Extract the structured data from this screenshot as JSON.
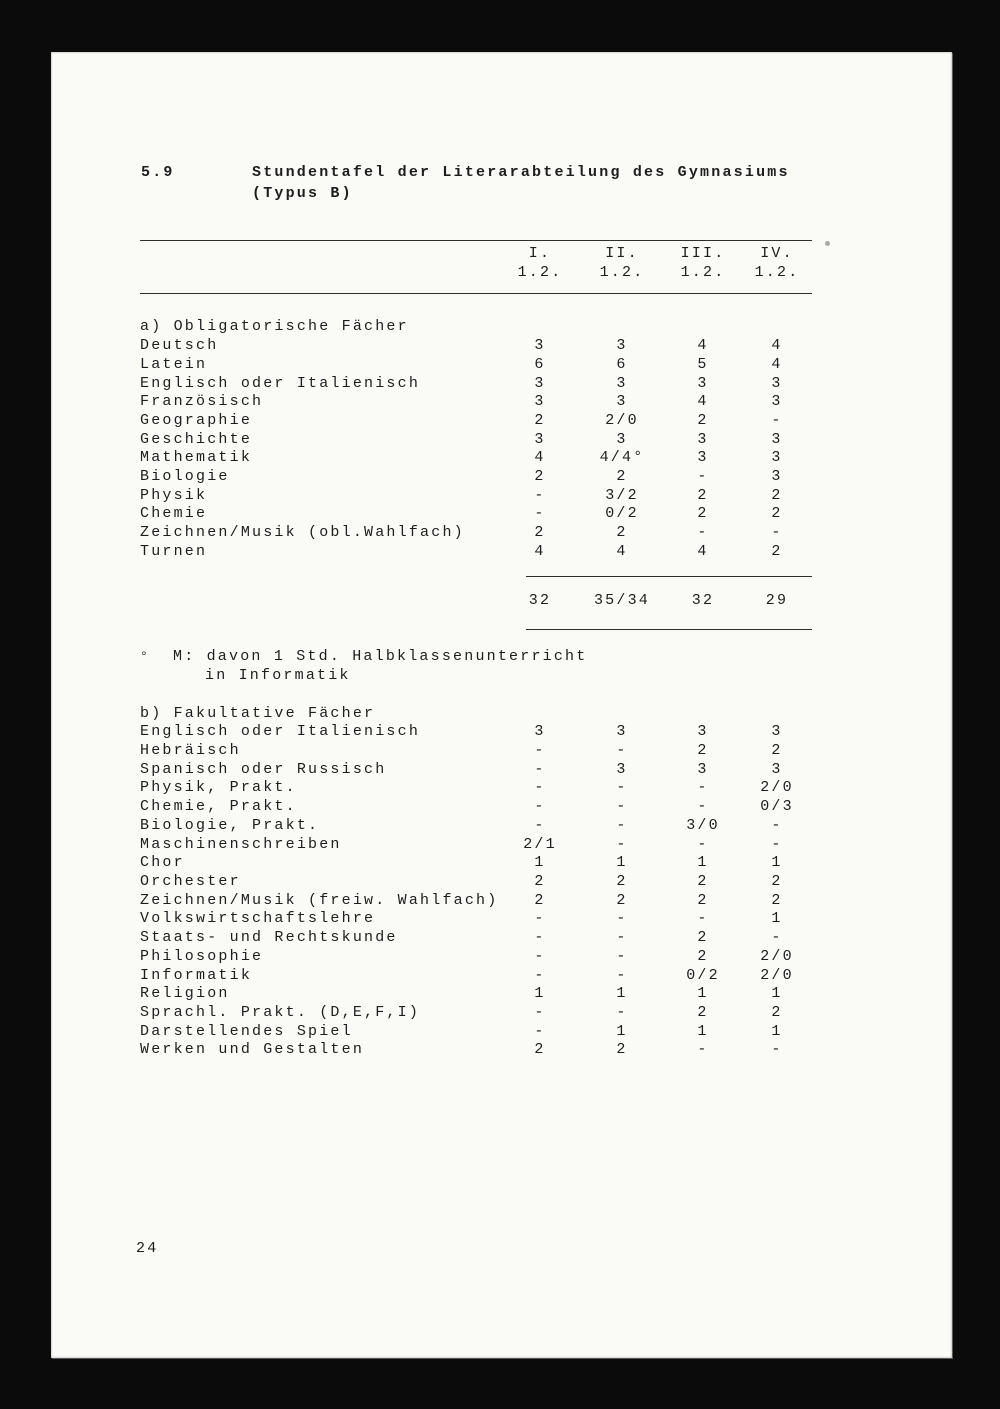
{
  "colors": {
    "scan_background": "#0b0b0c",
    "page_background": "#fafaf7",
    "text": "#1e1e1e",
    "rule": "#2e2e2e"
  },
  "page": {
    "section_number": "5.9",
    "title_line1": "Stundentafel der Literarabteilung des Gymnasiums",
    "title_line2": "(Typus B)",
    "page_number": "24"
  },
  "table": {
    "columns": [
      {
        "label": "I.",
        "sub": "1.2."
      },
      {
        "label": "II.",
        "sub": "1.2."
      },
      {
        "label": "III.",
        "sub": "1.2."
      },
      {
        "label": "IV.",
        "sub": "1.2."
      }
    ],
    "section_a": {
      "heading": "a) Obligatorische Fächer",
      "rows": [
        {
          "label": "Deutsch",
          "values": [
            "3",
            "3",
            "4",
            "4"
          ]
        },
        {
          "label": "Latein",
          "values": [
            "6",
            "6",
            "5",
            "4"
          ]
        },
        {
          "label": "Englisch oder Italienisch",
          "values": [
            "3",
            "3",
            "3",
            "3"
          ]
        },
        {
          "label": "Französisch",
          "values": [
            "3",
            "3",
            "4",
            "3"
          ]
        },
        {
          "label": "Geographie",
          "values": [
            "2",
            "2/0",
            "2",
            "-"
          ]
        },
        {
          "label": "Geschichte",
          "values": [
            "3",
            "3",
            "3",
            "3"
          ]
        },
        {
          "label": "Mathematik",
          "values": [
            "4",
            "4/4°",
            "3",
            "3"
          ]
        },
        {
          "label": "Biologie",
          "values": [
            "2",
            "2",
            "-",
            "3"
          ]
        },
        {
          "label": "Physik",
          "values": [
            "-",
            "3/2",
            "2",
            "2"
          ]
        },
        {
          "label": "Chemie",
          "values": [
            "-",
            "0/2",
            "2",
            "2"
          ]
        },
        {
          "label": "Zeichnen/Musik (obl.Wahlfach)",
          "values": [
            "2",
            "2",
            "-",
            "-"
          ]
        },
        {
          "label": "Turnen",
          "values": [
            "4",
            "4",
            "4",
            "2"
          ]
        }
      ]
    },
    "totals": [
      "32",
      "35/34",
      "32",
      "29"
    ],
    "footnote": {
      "marker": "°",
      "line1": "M: davon 1 Std. Halbklassenunterricht",
      "line2": "in Informatik"
    },
    "section_b": {
      "heading": "b) Fakultative Fächer",
      "rows": [
        {
          "label": "Englisch oder Italienisch",
          "values": [
            "3",
            "3",
            "3",
            "3"
          ]
        },
        {
          "label": "Hebräisch",
          "values": [
            "-",
            "-",
            "2",
            "2"
          ]
        },
        {
          "label": "Spanisch oder Russisch",
          "values": [
            "-",
            "3",
            "3",
            "3"
          ]
        },
        {
          "label": "Physik, Prakt.",
          "values": [
            "-",
            "-",
            "-",
            "2/0"
          ]
        },
        {
          "label": "Chemie, Prakt.",
          "values": [
            "-",
            "-",
            "-",
            "0/3"
          ]
        },
        {
          "label": "Biologie, Prakt.",
          "values": [
            "-",
            "-",
            "3/0",
            "-"
          ]
        },
        {
          "label": "Maschinenschreiben",
          "values": [
            "2/1",
            "-",
            "-",
            "-"
          ]
        },
        {
          "label": "Chor",
          "values": [
            "1",
            "1",
            "1",
            "1"
          ]
        },
        {
          "label": "Orchester",
          "values": [
            "2",
            "2",
            "2",
            "2"
          ]
        },
        {
          "label": "Zeichnen/Musik (freiw. Wahlfach)",
          "values": [
            "2",
            "2",
            "2",
            "2"
          ]
        },
        {
          "label": "Volkswirtschaftslehre",
          "values": [
            "-",
            "-",
            "-",
            "1"
          ]
        },
        {
          "label": "Staats- und Rechtskunde",
          "values": [
            "-",
            "-",
            "2",
            "-"
          ]
        },
        {
          "label": "Philosophie",
          "values": [
            "-",
            "-",
            "2",
            "2/0"
          ]
        },
        {
          "label": "Informatik",
          "values": [
            "-",
            "-",
            "0/2",
            "2/0"
          ]
        },
        {
          "label": "Religion",
          "values": [
            "1",
            "1",
            "1",
            "1"
          ]
        },
        {
          "label": "Sprachl. Prakt. (D,E,F,I)",
          "values": [
            "-",
            "-",
            "2",
            "2"
          ]
        },
        {
          "label": "Darstellendes Spiel",
          "values": [
            "-",
            "1",
            "1",
            "1"
          ]
        },
        {
          "label": "Werken und Gestalten",
          "values": [
            "2",
            "2",
            "-",
            "-"
          ]
        }
      ]
    }
  }
}
